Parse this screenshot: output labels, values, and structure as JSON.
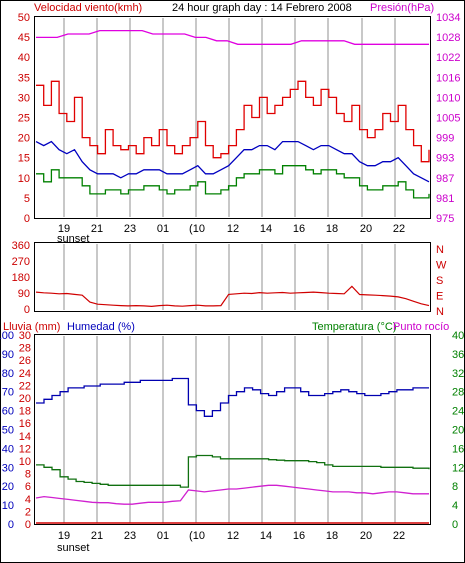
{
  "header": {
    "left_title": "Velocidad viento(kmh)",
    "center_title": "24 hour graph day : 14 Febrero 2008",
    "right_title": "Presión(hPa)"
  },
  "x_axis": {
    "ticks": [
      "19",
      "21",
      "23",
      "01",
      "(10",
      "12",
      "14",
      "16",
      "18",
      "20",
      "22"
    ],
    "sunset_label": "sunset"
  },
  "colors": {
    "gust": "#e00000",
    "avg_wind": "#0000c0",
    "min_wind": "#008000",
    "pressure": "#e000e0",
    "direction": "#d00000",
    "humidity": "#0000b0",
    "temperature": "#107010",
    "dewpoint": "#d020d0",
    "rain": "#d00000",
    "vline": "#c8c8c8"
  },
  "chart_data": [
    {
      "type": "line",
      "panel": "wind-pressure",
      "x_ticks": [
        "19",
        "21",
        "23",
        "01",
        "(10",
        "12",
        "14",
        "16",
        "18",
        "20",
        "22"
      ],
      "left_axis": {
        "label": "Velocidad viento(kmh)",
        "ticks": [
          0,
          5,
          10,
          15,
          20,
          25,
          30,
          35,
          40,
          45,
          50
        ],
        "ylim": [
          0,
          50
        ]
      },
      "right_axis": {
        "label": "Presión(hPa)",
        "ticks": [
          975,
          981,
          987,
          993,
          999,
          1005,
          1010,
          1016,
          1022,
          1028,
          1034
        ],
        "ylim": [
          975,
          1034
        ]
      },
      "series": [
        {
          "name": "gust",
          "axis": "left",
          "values": [
            33,
            28,
            34,
            26,
            24,
            30,
            20,
            18,
            16,
            22,
            18,
            17,
            18,
            16,
            20,
            18,
            22,
            18,
            16,
            18,
            20,
            24,
            18,
            15,
            16,
            18,
            22,
            28,
            25,
            30,
            26,
            28,
            30,
            32,
            34,
            30,
            28,
            32,
            30,
            26,
            24,
            28,
            22,
            20,
            22,
            26,
            24,
            28,
            22,
            18,
            14,
            17
          ]
        },
        {
          "name": "avg_wind",
          "axis": "left",
          "values": [
            19,
            18,
            19,
            17,
            16,
            17,
            14,
            12,
            11,
            11,
            11,
            10,
            11,
            11,
            12,
            12,
            12,
            11,
            11,
            11,
            12,
            13,
            11,
            11,
            12,
            13,
            15,
            17,
            17,
            18,
            18,
            17,
            19,
            19,
            19,
            18,
            17,
            18,
            18,
            17,
            16,
            16,
            14,
            13,
            13,
            14,
            14,
            15,
            13,
            11,
            10,
            9
          ]
        },
        {
          "name": "min_wind",
          "axis": "left",
          "values": [
            11,
            9,
            12,
            10,
            10,
            10,
            8,
            6,
            6,
            7,
            7,
            6,
            7,
            7,
            8,
            8,
            7,
            6,
            7,
            7,
            8,
            9,
            6,
            6,
            7,
            8,
            10,
            11,
            11,
            12,
            12,
            11,
            13,
            13,
            13,
            12,
            11,
            12,
            12,
            11,
            10,
            10,
            8,
            7,
            7,
            8,
            8,
            9,
            7,
            5,
            5,
            6
          ]
        },
        {
          "name": "pressure",
          "axis": "right",
          "values": [
            1028,
            1028,
            1028,
            1029,
            1029,
            1029,
            1030,
            1030,
            1030,
            1030,
            1030,
            1029,
            1029,
            1029,
            1029,
            1028,
            1028,
            1027,
            1027,
            1026,
            1026,
            1026,
            1026,
            1026,
            1026,
            1027,
            1027,
            1027,
            1027,
            1027,
            1026,
            1026,
            1026,
            1026,
            1026,
            1026,
            1026,
            1026
          ]
        }
      ]
    },
    {
      "type": "line",
      "panel": "wind-direction",
      "x_ticks": [
        "19",
        "21",
        "23",
        "01",
        "(10",
        "12",
        "14",
        "16",
        "18",
        "20",
        "22"
      ],
      "left_axis": {
        "ticks": [
          0,
          90,
          180,
          270,
          360
        ],
        "ylim": [
          0,
          360
        ]
      },
      "right_axis": {
        "ticks": [
          "N",
          "E",
          "S",
          "W",
          "N"
        ]
      },
      "series": [
        {
          "name": "direction",
          "values": [
            98,
            94,
            92,
            88,
            90,
            85,
            80,
            40,
            28,
            25,
            22,
            20,
            18,
            20,
            18,
            15,
            20,
            22,
            18,
            16,
            20,
            22,
            18,
            18,
            20,
            85,
            88,
            92,
            90,
            95,
            92,
            94,
            96,
            92,
            94,
            96,
            98,
            95,
            92,
            90,
            88,
            132,
            84,
            82,
            80,
            78,
            75,
            70,
            60,
            45,
            30,
            20
          ]
        }
      ]
    },
    {
      "type": "line",
      "panel": "rain-humidity-temperature",
      "x_ticks": [
        "19",
        "21",
        "23",
        "01",
        "(10",
        "12",
        "14",
        "16",
        "18",
        "20",
        "22"
      ],
      "left_axis": {
        "labels": [
          "Lluvia (mm)",
          "Humedad (%)"
        ],
        "rain_ticks": [
          0,
          2,
          4,
          6,
          8,
          10,
          12,
          14,
          16,
          18,
          20,
          22,
          24,
          26,
          28,
          30
        ],
        "humidity_ticks": [
          0,
          10,
          20,
          30,
          40,
          50,
          60,
          70,
          80,
          90,
          100
        ]
      },
      "right_axis": {
        "labels": [
          "Temperatura (°C)",
          "Punto rocío"
        ],
        "ticks": [
          0,
          4,
          8,
          12,
          16,
          20,
          24,
          28,
          32,
          36,
          40
        ]
      },
      "series": [
        {
          "name": "humidity",
          "values": [
            64,
            66,
            68,
            70,
            72,
            72,
            73,
            73,
            74,
            74,
            74,
            75,
            75,
            76,
            76,
            76,
            76,
            77,
            77,
            63,
            60,
            57,
            60,
            64,
            68,
            70,
            72,
            71,
            69,
            68,
            70,
            72,
            72,
            70,
            68,
            68,
            69,
            70,
            71,
            70,
            69,
            68,
            68,
            69,
            70,
            71,
            71,
            72,
            72,
            72
          ]
        },
        {
          "name": "temperature",
          "values": [
            12.5,
            12,
            11.5,
            10,
            9.5,
            9,
            8.8,
            8.6,
            8.4,
            8.2,
            8.2,
            8.2,
            8.2,
            8.2,
            8.2,
            8.2,
            8.2,
            8.2,
            7.8,
            14.2,
            14.5,
            14.5,
            14.2,
            13.8,
            13.8,
            13.8,
            13.8,
            13.8,
            13.8,
            13.6,
            13.5,
            13.4,
            13.4,
            13.4,
            13.2,
            13,
            12.5,
            12.2,
            12.2,
            12.2,
            12.2,
            12.2,
            12.2,
            12,
            12,
            12,
            12,
            11.8,
            11.8,
            11.6
          ]
        },
        {
          "name": "dewpoint",
          "values": [
            5.5,
            5.8,
            5.6,
            5.4,
            5.2,
            5,
            4.8,
            4.6,
            4.5,
            4.5,
            4.3,
            4.2,
            4.2,
            4.4,
            4.6,
            4.6,
            4.6,
            4.8,
            4.9,
            7.2,
            7.0,
            6.8,
            7.0,
            7.2,
            7.4,
            7.4,
            7.6,
            7.8,
            8.0,
            8.2,
            8.2,
            8.0,
            7.8,
            7.6,
            7.4,
            7.2,
            7.0,
            6.8,
            6.8,
            6.8,
            6.6,
            6.6,
            6.4,
            6.6,
            6.8,
            6.8,
            6.6,
            6.4,
            6.4,
            6.4
          ]
        },
        {
          "name": "rain",
          "values": [
            0,
            0,
            0,
            0,
            0,
            0,
            0,
            0,
            0,
            0,
            0,
            0,
            0,
            0,
            0,
            0,
            0,
            0,
            0,
            0,
            0,
            0,
            0,
            0,
            0,
            0,
            0,
            0,
            0,
            0,
            0,
            0,
            0,
            0,
            0,
            0,
            0,
            0,
            0,
            0,
            0,
            0,
            0,
            0,
            0,
            0,
            0,
            0,
            0,
            0
          ]
        }
      ]
    }
  ],
  "direction_panel": {
    "right_labels": [
      "N",
      "W",
      "S",
      "E",
      "N"
    ]
  },
  "bottom_panel": {
    "rain_label": "Lluvia (mm)",
    "humidity_label": "Humedad (%)",
    "temperature_label": "Temperatura (°C)",
    "dewpoint_label": "Punto rocío"
  }
}
